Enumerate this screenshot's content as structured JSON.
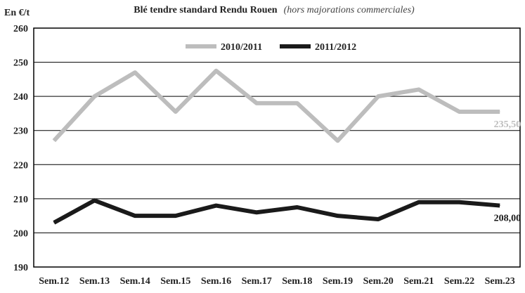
{
  "chart_data": {
    "type": "line",
    "title": "Blé tendre standard Rendu Rouen",
    "subtitle": "(hors majorations commerciales)",
    "ylabel": "En €/t",
    "xlabel": "",
    "ylim": [
      190,
      260
    ],
    "yticks": [
      "190",
      "200",
      "210",
      "220",
      "230",
      "240",
      "250",
      "260"
    ],
    "categories": [
      "Sem.12",
      "Sem.13",
      "Sem.14",
      "Sem.15",
      "Sem.16",
      "Sem.17",
      "Sem.18",
      "Sem.19",
      "Sem.20",
      "Sem.21",
      "Sem.22",
      "Sem.23"
    ],
    "grid": true,
    "legend_position": "top-center",
    "series": [
      {
        "name": "2010/2011",
        "color": "#bdbdbd",
        "values": [
          227,
          240,
          247,
          235.5,
          247.5,
          238,
          238,
          227,
          240,
          242,
          235.5,
          235.5
        ],
        "end_label": "235,50"
      },
      {
        "name": "2011/2012",
        "color": "#1a1a1a",
        "values": [
          203,
          209.5,
          205,
          205,
          208,
          206,
          207.5,
          205,
          204,
          209,
          209,
          208
        ],
        "end_label": "208,00"
      }
    ]
  }
}
